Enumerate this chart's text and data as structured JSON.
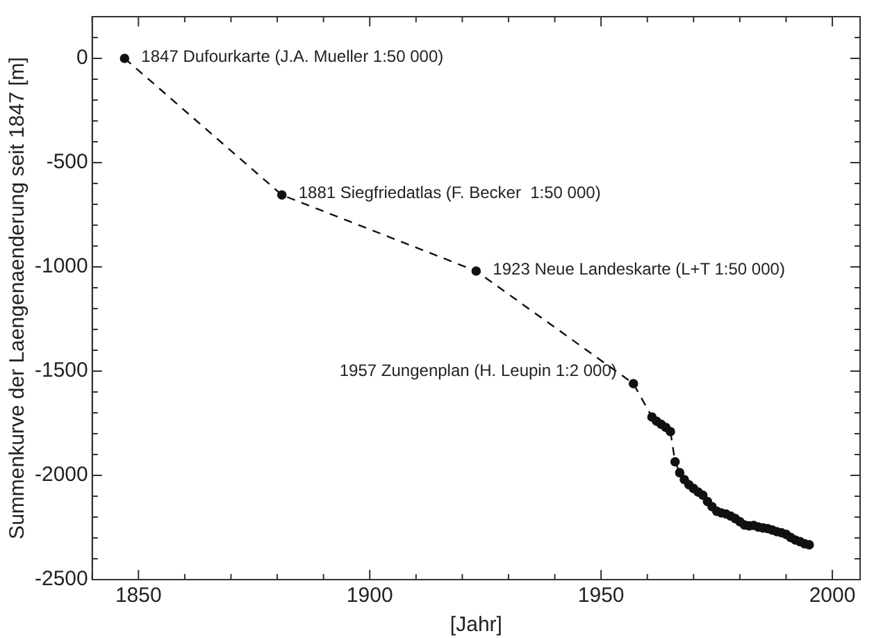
{
  "chart_data": {
    "type": "line",
    "xlabel": "[Jahr]",
    "ylabel": "Summenkurve der Laengenaenderung seit 1847 [m]",
    "x": [
      1847,
      1881,
      1923,
      1957,
      1961,
      1962,
      1963,
      1964,
      1965,
      1966,
      1967,
      1968,
      1969,
      1970,
      1971,
      1972,
      1973,
      1974,
      1975,
      1976,
      1977,
      1978,
      1979,
      1980,
      1981,
      1982,
      1983,
      1984,
      1985,
      1986,
      1987,
      1988,
      1989,
      1990,
      1991,
      1992,
      1993,
      1994,
      1995
    ],
    "series": [
      {
        "color": "#111111",
        "values": [
          0,
          -655,
          -1020,
          -1560,
          -1720,
          -1740,
          -1755,
          -1770,
          -1790,
          -1935,
          -1987,
          -2020,
          -2045,
          -2063,
          -2080,
          -2095,
          -2125,
          -2150,
          -2172,
          -2180,
          -2185,
          -2195,
          -2207,
          -2222,
          -2238,
          -2242,
          -2240,
          -2248,
          -2252,
          -2255,
          -2262,
          -2270,
          -2275,
          -2283,
          -2298,
          -2310,
          -2318,
          -2328,
          -2333
        ]
      }
    ],
    "xlim": [
      1840,
      2006
    ],
    "ylim": [
      -2500,
      200
    ],
    "xticks": [
      {
        "value": 1840,
        "label": null
      },
      1850,
      {
        "value": 1860,
        "label": null
      },
      {
        "value": 1870,
        "label": null
      },
      {
        "value": 1880,
        "label": null
      },
      {
        "value": 1890,
        "label": null
      },
      1900,
      {
        "value": 1910,
        "label": null
      },
      {
        "value": 1920,
        "label": null
      },
      {
        "value": 1930,
        "label": null
      },
      {
        "value": 1940,
        "label": null
      },
      1950,
      {
        "value": 1960,
        "label": null
      },
      {
        "value": 1970,
        "label": null
      },
      {
        "value": 1980,
        "label": null
      },
      {
        "value": 1990,
        "label": null
      },
      2000
    ],
    "yticks": [
      -2500,
      {
        "value": -2400,
        "label": null
      },
      {
        "value": -2300,
        "label": null
      },
      {
        "value": -2200,
        "label": null
      },
      {
        "value": -2100,
        "label": null
      },
      -2000,
      {
        "value": -1900,
        "label": null
      },
      {
        "value": -1800,
        "label": null
      },
      {
        "value": -1700,
        "label": null
      },
      {
        "value": -1600,
        "label": null
      },
      -1500,
      {
        "value": -1400,
        "label": null
      },
      {
        "value": -1300,
        "label": null
      },
      {
        "value": -1200,
        "label": null
      },
      {
        "value": -1100,
        "label": null
      },
      -1000,
      {
        "value": -900,
        "label": null
      },
      {
        "value": -800,
        "label": null
      },
      {
        "value": -700,
        "label": null
      },
      {
        "value": -600,
        "label": null
      },
      -500,
      {
        "value": -400,
        "label": null
      },
      {
        "value": -300,
        "label": null
      },
      {
        "value": -200,
        "label": null
      },
      {
        "value": -100,
        "label": null
      },
      0,
      {
        "value": 100,
        "label": null
      },
      {
        "value": 200,
        "label": null
      }
    ],
    "annotations": [
      {
        "text": "1847 Dufourkarte (J.A. Mueller 1:50 000)",
        "x": 1847,
        "y": 0
      },
      {
        "text": "1881 Siegfriedatlas (F. Becker  1:50 000)",
        "x": 1881,
        "y": -655
      },
      {
        "text": "1923 Neue Landeskarte (L+T 1:50 000)",
        "x": 1923,
        "y": -1020
      },
      {
        "text": "1957 Zungenplan (H. Leupin 1:2 000)",
        "x": 1957,
        "y": -1560
      }
    ],
    "grid": false,
    "legend": false,
    "marker": "circle",
    "line_style": "dashed"
  }
}
